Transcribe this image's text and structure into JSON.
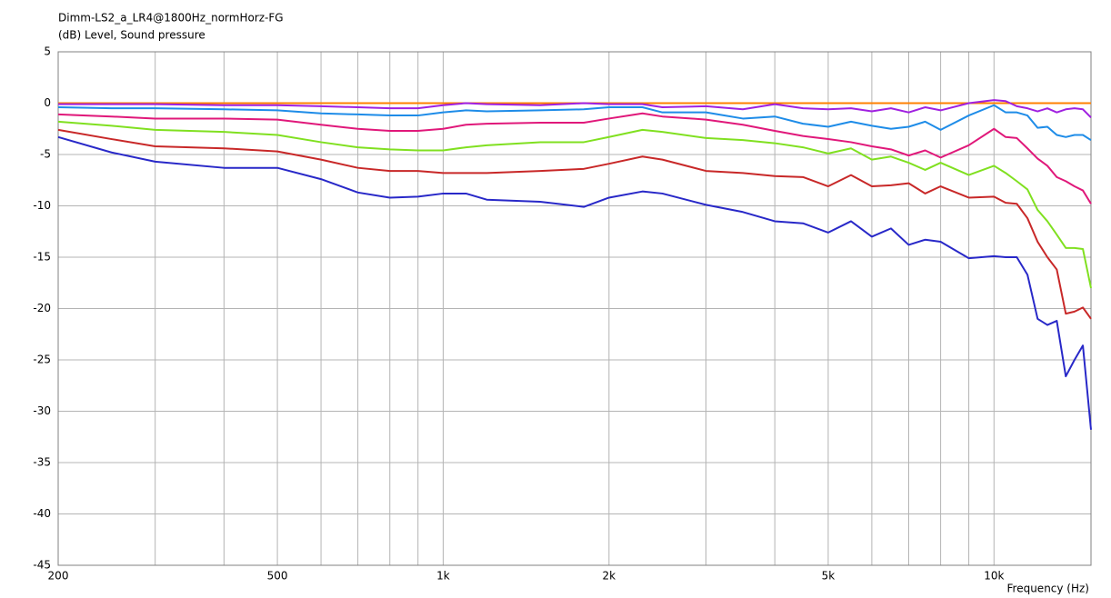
{
  "chart_data": {
    "type": "line",
    "title": "Dimm-LS2_a_LR4@1800Hz_normHorz-FG",
    "y_label": "(dB)  Level, Sound pressure",
    "x_label": "Frequency  (Hz)",
    "x_scale": "log",
    "grid": true,
    "x": [
      200,
      250,
      300,
      400,
      500,
      600,
      700,
      800,
      900,
      1000,
      1100,
      1200,
      1500,
      1800,
      2000,
      2300,
      2500,
      3000,
      3500,
      4000,
      4500,
      5000,
      5500,
      6000,
      6500,
      7000,
      7500,
      8000,
      9000,
      10000,
      10500,
      11000,
      11500,
      12000,
      12500,
      13000,
      13500,
      14000,
      14500,
      15000
    ],
    "xlim": [
      200,
      15000
    ],
    "xticks": [
      200,
      500,
      {
        "value": 1000,
        "label": "1k"
      },
      {
        "value": 2000,
        "label": "2k"
      },
      {
        "value": 5000,
        "label": "5k"
      },
      {
        "value": 10000,
        "label": "10k"
      }
    ],
    "x_minor_gridlines": [
      300,
      400,
      600,
      700,
      800,
      900,
      3000,
      4000,
      6000,
      7000,
      8000,
      9000
    ],
    "ylim": [
      -45,
      5
    ],
    "yticks": [
      5,
      0,
      -5,
      -10,
      -15,
      -20,
      -25,
      -30,
      -35,
      -40,
      -45
    ],
    "series": [
      {
        "color": "#ff8000",
        "values": [
          0,
          0,
          0,
          0,
          0,
          0,
          0,
          0,
          0,
          0,
          0,
          0,
          0,
          0,
          0,
          0,
          0,
          0,
          0,
          0,
          0,
          0,
          0,
          0,
          0,
          0,
          0,
          0,
          0,
          0,
          0,
          0,
          0,
          0,
          0,
          0,
          0,
          0,
          0,
          0
        ]
      },
      {
        "color": "#a020e0",
        "values": [
          -0.1,
          -0.1,
          -0.1,
          -0.2,
          -0.2,
          -0.3,
          -0.4,
          -0.5,
          -0.5,
          -0.2,
          0,
          -0.1,
          -0.2,
          0,
          -0.1,
          -0.1,
          -0.4,
          -0.3,
          -0.6,
          -0.1,
          -0.5,
          -0.6,
          -0.5,
          -0.8,
          -0.5,
          -0.9,
          -0.4,
          -0.7,
          0,
          0.3,
          0.2,
          -0.3,
          -0.5,
          -0.8,
          -0.5,
          -0.9,
          -0.6,
          -0.5,
          -0.6,
          -1.4
        ]
      },
      {
        "color": "#1e8ce8",
        "values": [
          -0.4,
          -0.5,
          -0.5,
          -0.6,
          -0.7,
          -1,
          -1.1,
          -1.2,
          -1.2,
          -0.9,
          -0.7,
          -0.8,
          -0.7,
          -0.6,
          -0.4,
          -0.4,
          -0.9,
          -0.9,
          -1.5,
          -1.3,
          -2,
          -2.3,
          -1.8,
          -2.2,
          -2.5,
          -2.3,
          -1.8,
          -2.6,
          -1.2,
          -0.2,
          -0.9,
          -0.9,
          -1.2,
          -2.4,
          -2.3,
          -3.1,
          -3.3,
          -3.1,
          -3.1,
          -3.6
        ]
      },
      {
        "color": "#e0187a",
        "values": [
          -1.1,
          -1.3,
          -1.5,
          -1.5,
          -1.6,
          -2.1,
          -2.5,
          -2.7,
          -2.7,
          -2.5,
          -2.1,
          -2,
          -1.9,
          -1.9,
          -1.5,
          -1,
          -1.3,
          -1.6,
          -2.1,
          -2.7,
          -3.2,
          -3.5,
          -3.8,
          -4.2,
          -4.5,
          -5.1,
          -4.6,
          -5.3,
          -4.1,
          -2.5,
          -3.3,
          -3.4,
          -4.4,
          -5.4,
          -6.1,
          -7.2,
          -7.6,
          -8.1,
          -8.5,
          -9.8
        ]
      },
      {
        "color": "#80e020",
        "values": [
          -1.8,
          -2.2,
          -2.6,
          -2.8,
          -3.1,
          -3.8,
          -4.3,
          -4.5,
          -4.6,
          -4.6,
          -4.3,
          -4.1,
          -3.8,
          -3.8,
          -3.3,
          -2.6,
          -2.8,
          -3.4,
          -3.6,
          -3.9,
          -4.3,
          -4.9,
          -4.4,
          -5.5,
          -5.2,
          -5.8,
          -6.5,
          -5.8,
          -7,
          -6.1,
          -6.8,
          -7.6,
          -8.4,
          -10.4,
          -11.5,
          -12.8,
          -14.1,
          -14.1,
          -14.2,
          -18
        ]
      },
      {
        "color": "#c82828",
        "values": [
          -2.6,
          -3.5,
          -4.2,
          -4.4,
          -4.7,
          -5.5,
          -6.3,
          -6.6,
          -6.6,
          -6.8,
          -6.8,
          -6.8,
          -6.6,
          -6.4,
          -5.9,
          -5.2,
          -5.5,
          -6.6,
          -6.8,
          -7.1,
          -7.2,
          -8.1,
          -7,
          -8.1,
          -8,
          -7.8,
          -8.8,
          -8.1,
          -9.2,
          -9.1,
          -9.7,
          -9.8,
          -11.2,
          -13.5,
          -15,
          -16.2,
          -20.5,
          -20.3,
          -19.9,
          -21
        ]
      },
      {
        "color": "#2828c8",
        "values": [
          -3.3,
          -4.8,
          -5.7,
          -6.3,
          -6.3,
          -7.4,
          -8.7,
          -9.2,
          -9.1,
          -8.8,
          -8.8,
          -9.4,
          -9.6,
          -10.1,
          -9.2,
          -8.6,
          -8.8,
          -9.9,
          -10.6,
          -11.5,
          -11.7,
          -12.6,
          -11.5,
          -13,
          -12.2,
          -13.8,
          -13.3,
          -13.5,
          -15.1,
          -14.9,
          -15.0,
          -15.0,
          -16.7,
          -21.0,
          -21.6,
          -21.2,
          -26.6,
          -25.0,
          -23.6,
          -31.8
        ]
      }
    ]
  }
}
